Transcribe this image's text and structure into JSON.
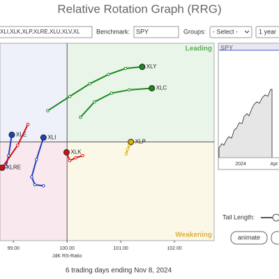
{
  "header": {
    "title": "Relative Rotation Graph (RRG)"
  },
  "controls": {
    "symbols": "XLI,XLK,XLP,XLRE,XLU,XLV,XL",
    "benchmark_label": "Benchmark:",
    "benchmark": "SPY",
    "groups_label": "Groups:",
    "groups": "- Select -",
    "period": "1 year",
    "tail_label": "Tail Length:",
    "animate": "animate"
  },
  "price_panel": {
    "symbol": "SPY",
    "ticks": [
      "2024",
      "Apr"
    ]
  },
  "footer": "6 trading days ending Nov 8, 2024",
  "chart_data": {
    "type": "rrg",
    "x_label": "JdK RS-Ratio",
    "quadrants": {
      "leading": "Leading",
      "weakening": "Weakening"
    },
    "xlim": [
      98.75,
      102.74
    ],
    "ylim": [
      98.2,
      101.8
    ],
    "xticks": [
      {
        "value": 99,
        "label": "99.00"
      },
      {
        "value": 100,
        "label": "100.00"
      },
      {
        "value": 101,
        "label": "101.00"
      },
      {
        "value": 102,
        "label": "102.00"
      }
    ],
    "series": [
      {
        "name": "XLY",
        "color": "#1a8a1a",
        "x": [
          99.64,
          100.05,
          100.42,
          100.77,
          101.09,
          101.4
        ],
        "values": [
          100.57,
          100.83,
          101.06,
          101.23,
          101.34,
          101.37
        ]
      },
      {
        "name": "XLC",
        "color": "#1a8a1a",
        "x": [
          100.25,
          100.51,
          100.83,
          101.16,
          101.58
        ],
        "values": [
          100.45,
          100.73,
          100.89,
          100.95,
          100.98
        ]
      },
      {
        "name": "XLP",
        "color": "#e0b000",
        "x": [
          101.1,
          101.13,
          101.16,
          101.19
        ],
        "values": [
          99.78,
          99.87,
          99.94,
          100.0
        ]
      },
      {
        "name": "XLK",
        "color": "#d01010",
        "x": [
          100.29,
          100.16,
          100.05,
          99.99
        ],
        "values": [
          99.75,
          99.71,
          99.66,
          99.81
        ]
      },
      {
        "name": "XLI",
        "color": "#2040c0",
        "x": [
          99.56,
          99.4,
          99.34,
          99.43,
          99.56
        ],
        "values": [
          99.2,
          99.22,
          99.36,
          99.68,
          100.08
        ]
      },
      {
        "name": "XLE",
        "color": "#2040c0",
        "x": [
          98.86,
          98.91,
          98.97
        ],
        "values": [
          99.55,
          99.75,
          100.13
        ]
      },
      {
        "name": "XLRE",
        "color": "#d01010",
        "x": [
          99.27,
          99.08,
          98.79
        ],
        "values": [
          100.32,
          99.94,
          99.53
        ]
      }
    ]
  }
}
